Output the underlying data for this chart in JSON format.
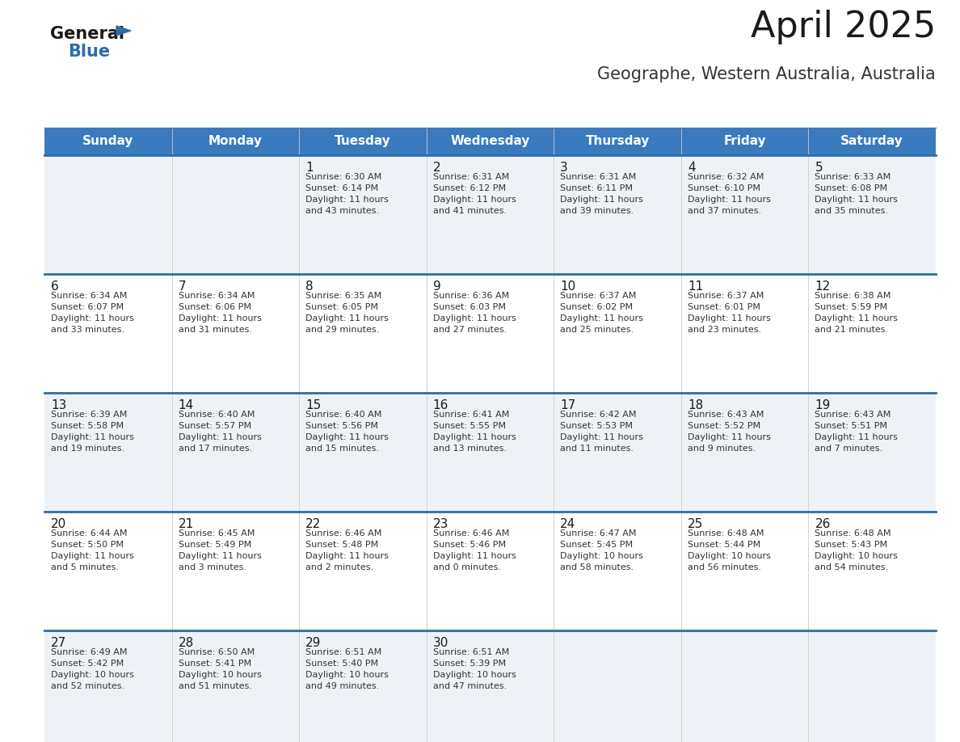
{
  "title": "April 2025",
  "subtitle": "Geographe, Western Australia, Australia",
  "header_bg_color": "#3a7abf",
  "header_text_color": "#ffffff",
  "days_of_week": [
    "Sunday",
    "Monday",
    "Tuesday",
    "Wednesday",
    "Thursday",
    "Friday",
    "Saturday"
  ],
  "cell_bg_colors": [
    "#eef2f7",
    "#ffffff",
    "#eef2f7",
    "#ffffff",
    "#eef2f7"
  ],
  "row_line_color": "#2e6da4",
  "title_color": "#1a1a1a",
  "subtitle_color": "#333333",
  "day_num_color": "#1a1a1a",
  "info_color": "#333333",
  "calendar": [
    [
      {
        "day": "",
        "info": ""
      },
      {
        "day": "",
        "info": ""
      },
      {
        "day": "1",
        "info": "Sunrise: 6:30 AM\nSunset: 6:14 PM\nDaylight: 11 hours\nand 43 minutes."
      },
      {
        "day": "2",
        "info": "Sunrise: 6:31 AM\nSunset: 6:12 PM\nDaylight: 11 hours\nand 41 minutes."
      },
      {
        "day": "3",
        "info": "Sunrise: 6:31 AM\nSunset: 6:11 PM\nDaylight: 11 hours\nand 39 minutes."
      },
      {
        "day": "4",
        "info": "Sunrise: 6:32 AM\nSunset: 6:10 PM\nDaylight: 11 hours\nand 37 minutes."
      },
      {
        "day": "5",
        "info": "Sunrise: 6:33 AM\nSunset: 6:08 PM\nDaylight: 11 hours\nand 35 minutes."
      }
    ],
    [
      {
        "day": "6",
        "info": "Sunrise: 6:34 AM\nSunset: 6:07 PM\nDaylight: 11 hours\nand 33 minutes."
      },
      {
        "day": "7",
        "info": "Sunrise: 6:34 AM\nSunset: 6:06 PM\nDaylight: 11 hours\nand 31 minutes."
      },
      {
        "day": "8",
        "info": "Sunrise: 6:35 AM\nSunset: 6:05 PM\nDaylight: 11 hours\nand 29 minutes."
      },
      {
        "day": "9",
        "info": "Sunrise: 6:36 AM\nSunset: 6:03 PM\nDaylight: 11 hours\nand 27 minutes."
      },
      {
        "day": "10",
        "info": "Sunrise: 6:37 AM\nSunset: 6:02 PM\nDaylight: 11 hours\nand 25 minutes."
      },
      {
        "day": "11",
        "info": "Sunrise: 6:37 AM\nSunset: 6:01 PM\nDaylight: 11 hours\nand 23 minutes."
      },
      {
        "day": "12",
        "info": "Sunrise: 6:38 AM\nSunset: 5:59 PM\nDaylight: 11 hours\nand 21 minutes."
      }
    ],
    [
      {
        "day": "13",
        "info": "Sunrise: 6:39 AM\nSunset: 5:58 PM\nDaylight: 11 hours\nand 19 minutes."
      },
      {
        "day": "14",
        "info": "Sunrise: 6:40 AM\nSunset: 5:57 PM\nDaylight: 11 hours\nand 17 minutes."
      },
      {
        "day": "15",
        "info": "Sunrise: 6:40 AM\nSunset: 5:56 PM\nDaylight: 11 hours\nand 15 minutes."
      },
      {
        "day": "16",
        "info": "Sunrise: 6:41 AM\nSunset: 5:55 PM\nDaylight: 11 hours\nand 13 minutes."
      },
      {
        "day": "17",
        "info": "Sunrise: 6:42 AM\nSunset: 5:53 PM\nDaylight: 11 hours\nand 11 minutes."
      },
      {
        "day": "18",
        "info": "Sunrise: 6:43 AM\nSunset: 5:52 PM\nDaylight: 11 hours\nand 9 minutes."
      },
      {
        "day": "19",
        "info": "Sunrise: 6:43 AM\nSunset: 5:51 PM\nDaylight: 11 hours\nand 7 minutes."
      }
    ],
    [
      {
        "day": "20",
        "info": "Sunrise: 6:44 AM\nSunset: 5:50 PM\nDaylight: 11 hours\nand 5 minutes."
      },
      {
        "day": "21",
        "info": "Sunrise: 6:45 AM\nSunset: 5:49 PM\nDaylight: 11 hours\nand 3 minutes."
      },
      {
        "day": "22",
        "info": "Sunrise: 6:46 AM\nSunset: 5:48 PM\nDaylight: 11 hours\nand 2 minutes."
      },
      {
        "day": "23",
        "info": "Sunrise: 6:46 AM\nSunset: 5:46 PM\nDaylight: 11 hours\nand 0 minutes."
      },
      {
        "day": "24",
        "info": "Sunrise: 6:47 AM\nSunset: 5:45 PM\nDaylight: 10 hours\nand 58 minutes."
      },
      {
        "day": "25",
        "info": "Sunrise: 6:48 AM\nSunset: 5:44 PM\nDaylight: 10 hours\nand 56 minutes."
      },
      {
        "day": "26",
        "info": "Sunrise: 6:48 AM\nSunset: 5:43 PM\nDaylight: 10 hours\nand 54 minutes."
      }
    ],
    [
      {
        "day": "27",
        "info": "Sunrise: 6:49 AM\nSunset: 5:42 PM\nDaylight: 10 hours\nand 52 minutes."
      },
      {
        "day": "28",
        "info": "Sunrise: 6:50 AM\nSunset: 5:41 PM\nDaylight: 10 hours\nand 51 minutes."
      },
      {
        "day": "29",
        "info": "Sunrise: 6:51 AM\nSunset: 5:40 PM\nDaylight: 10 hours\nand 49 minutes."
      },
      {
        "day": "30",
        "info": "Sunrise: 6:51 AM\nSunset: 5:39 PM\nDaylight: 10 hours\nand 47 minutes."
      },
      {
        "day": "",
        "info": ""
      },
      {
        "day": "",
        "info": ""
      },
      {
        "day": "",
        "info": ""
      }
    ]
  ],
  "logo_general_color": "#1a1a1a",
  "logo_blue_color": "#2e6da4",
  "logo_triangle_color": "#2e6da4",
  "fig_width": 11.88,
  "fig_height": 9.18,
  "dpi": 100
}
